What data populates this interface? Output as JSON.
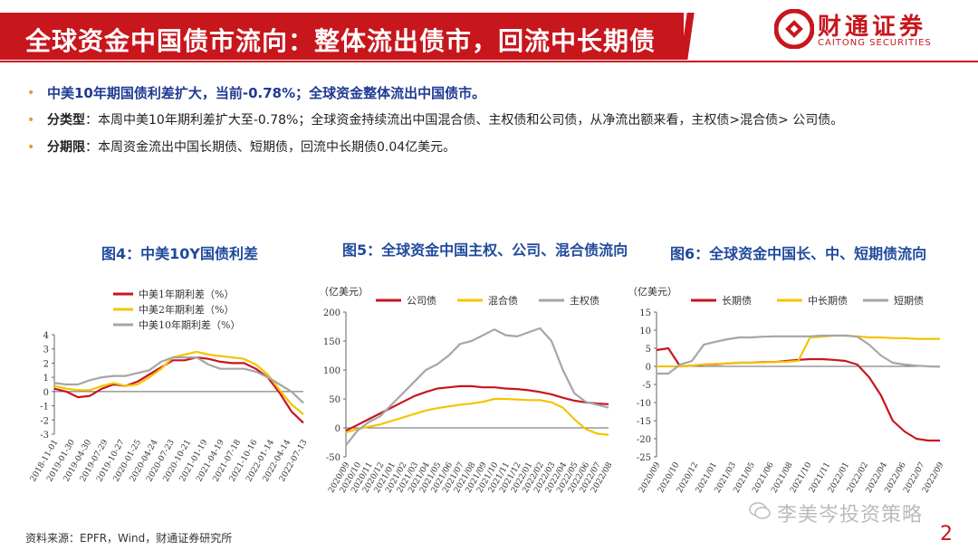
{
  "header": {
    "title": "全球资金中国债市流向：整体流出债市，回流中长期债",
    "logo_cn": "财通证券",
    "logo_en": "CAITONG SECURITIES",
    "brand_color": "#c8161d"
  },
  "bullets": [
    {
      "label": "",
      "text": "中美10年期国债利差扩大，当前-0.78%；全球资金整体流出中国债市。"
    },
    {
      "label": "分类型",
      "text": "：本周中美10年期利差扩大至-0.78%；全球资金持续流出中国混合债、主权债和公司债，从净流出额来看，主权债>混合债> 公司债。"
    },
    {
      "label": "分期限",
      "text": "：本周资金流出中国长期债、短期债，回流中长期债0.04亿美元。"
    }
  ],
  "footer": {
    "source": "资料来源：EPFR，Wind，财通证券研究所",
    "page": "2",
    "watermark": "李美岑投资策略"
  },
  "chart_data": [
    {
      "type": "line",
      "title": "图4：中美10Y国债利差",
      "unit": "",
      "ylim": [
        -3,
        4
      ],
      "yticks": [
        "4",
        "3",
        "2",
        "1",
        "0",
        "-1",
        "-2",
        "-3"
      ],
      "xticks": [
        "2018-11-01",
        "2019-01-30",
        "2019-04-30",
        "2019-07-29",
        "2019-10-27",
        "2020-01-25",
        "2020-04-24",
        "2020-07-23",
        "2020-10-21",
        "2021-01-19",
        "2021-04-19",
        "2021-07-18",
        "2021-10-16",
        "2022-01-14",
        "2022-04-14",
        "2022-07-13"
      ],
      "legend": [
        "中美1年期利差（%）",
        "中美2年期利差（%）",
        "中美10年期利差（%）"
      ],
      "colors": [
        "#c8161d",
        "#f5c400",
        "#a6a6a6"
      ],
      "series": [
        {
          "name": "中美1年期利差（%）",
          "values": [
            0.2,
            0.0,
            -0.4,
            -0.3,
            0.2,
            0.5,
            0.4,
            0.7,
            1.2,
            1.7,
            2.2,
            2.2,
            2.4,
            2.3,
            2.1,
            2.0,
            2.0,
            1.6,
            1.0,
            -0.1,
            -1.4,
            -2.2
          ]
        },
        {
          "name": "中美2年期利差（%）",
          "values": [
            0.4,
            0.2,
            0.1,
            0.1,
            0.4,
            0.6,
            0.4,
            0.5,
            1.0,
            1.6,
            2.4,
            2.6,
            2.8,
            2.6,
            2.5,
            2.4,
            2.3,
            1.9,
            1.2,
            0.1,
            -0.9,
            -1.6
          ]
        },
        {
          "name": "中美10年期利差（%）",
          "values": [
            0.6,
            0.5,
            0.5,
            0.8,
            1.0,
            1.1,
            1.1,
            1.3,
            1.5,
            2.1,
            2.4,
            2.4,
            2.4,
            1.9,
            1.6,
            1.6,
            1.6,
            1.4,
            1.0,
            0.5,
            0.0,
            -0.8
          ]
        }
      ]
    },
    {
      "type": "line",
      "title": "图5：全球资金中国主权、公司、混合债流向",
      "unit": "（亿美元）",
      "ylim": [
        -50,
        200
      ],
      "yticks": [
        "200",
        "150",
        "100",
        "50",
        "0",
        "-50"
      ],
      "xticks": [
        "2020/09",
        "2020/10",
        "2020/11",
        "2020/12",
        "2021/01",
        "2021/02",
        "2021/03",
        "2021/04",
        "2021/05",
        "2021/06",
        "2021/07",
        "2021/08",
        "2021/09",
        "2021/10",
        "2021/11",
        "2021/12",
        "2022/01",
        "2022/02",
        "2022/03",
        "2022/04",
        "2022/05",
        "2022/06",
        "2022/07",
        "2022/08"
      ],
      "legend": [
        "公司债",
        "混合债",
        "主权债"
      ],
      "colors": [
        "#c8161d",
        "#f5c400",
        "#a6a6a6"
      ],
      "series": [
        {
          "name": "公司债",
          "values": [
            -5,
            5,
            15,
            25,
            35,
            45,
            55,
            62,
            68,
            70,
            72,
            72,
            70,
            70,
            68,
            67,
            65,
            62,
            58,
            52,
            47,
            44,
            42,
            41
          ]
        },
        {
          "name": "混合债",
          "values": [
            -8,
            -2,
            2,
            6,
            12,
            18,
            24,
            30,
            34,
            37,
            40,
            42,
            45,
            50,
            50,
            49,
            48,
            48,
            44,
            35,
            15,
            -2,
            -10,
            -12
          ]
        },
        {
          "name": "主权债",
          "values": [
            -30,
            -5,
            10,
            20,
            40,
            60,
            80,
            100,
            110,
            125,
            145,
            150,
            160,
            170,
            160,
            158,
            165,
            172,
            150,
            100,
            60,
            45,
            40,
            35
          ]
        }
      ]
    },
    {
      "type": "line",
      "title": "图6：全球资金中国长、中、短期债流向",
      "unit": "（亿美元）",
      "ylim": [
        -25,
        15
      ],
      "yticks": [
        "15",
        "10",
        "5",
        "0",
        "-5",
        "-10",
        "-15",
        "-20",
        "-25"
      ],
      "xticks": [
        "2020/09",
        "2020/10",
        "2020/12",
        "2021/01",
        "2021/03",
        "2021/05",
        "2021/06",
        "2021/08",
        "2021/10",
        "2021/11",
        "2022/01",
        "2022/02",
        "2022/04",
        "2022/06",
        "2022/07",
        "2022/09"
      ],
      "legend": [
        "长期债",
        "中长期债",
        "短期债"
      ],
      "colors": [
        "#c8161d",
        "#f5c400",
        "#a6a6a6"
      ],
      "series": [
        {
          "name": "长期债",
          "values": [
            4.5,
            5,
            0,
            0.2,
            0.5,
            0.6,
            0.8,
            1,
            1,
            1.2,
            1.2,
            1.5,
            1.8,
            2,
            2,
            1.8,
            1.5,
            0.5,
            -3,
            -8,
            -15,
            -18,
            -20,
            -20.5,
            -20.5
          ]
        },
        {
          "name": "中长期债",
          "values": [
            0,
            0,
            0,
            0.2,
            0.5,
            0.7,
            0.8,
            1,
            1,
            1.1,
            1.2,
            1.3,
            1.5,
            8,
            8.2,
            8.5,
            8.5,
            8.3,
            8,
            8,
            7.8,
            7.8,
            7.6,
            7.6,
            7.6
          ]
        },
        {
          "name": "短期债",
          "values": [
            -2,
            -2,
            0.5,
            1.5,
            6,
            6.8,
            7.5,
            8,
            8,
            8.2,
            8.3,
            8.3,
            8.3,
            8.3,
            8.5,
            8.5,
            8.5,
            8.2,
            6,
            3,
            1,
            0.5,
            0.2,
            0,
            -0.1
          ]
        }
      ]
    }
  ]
}
